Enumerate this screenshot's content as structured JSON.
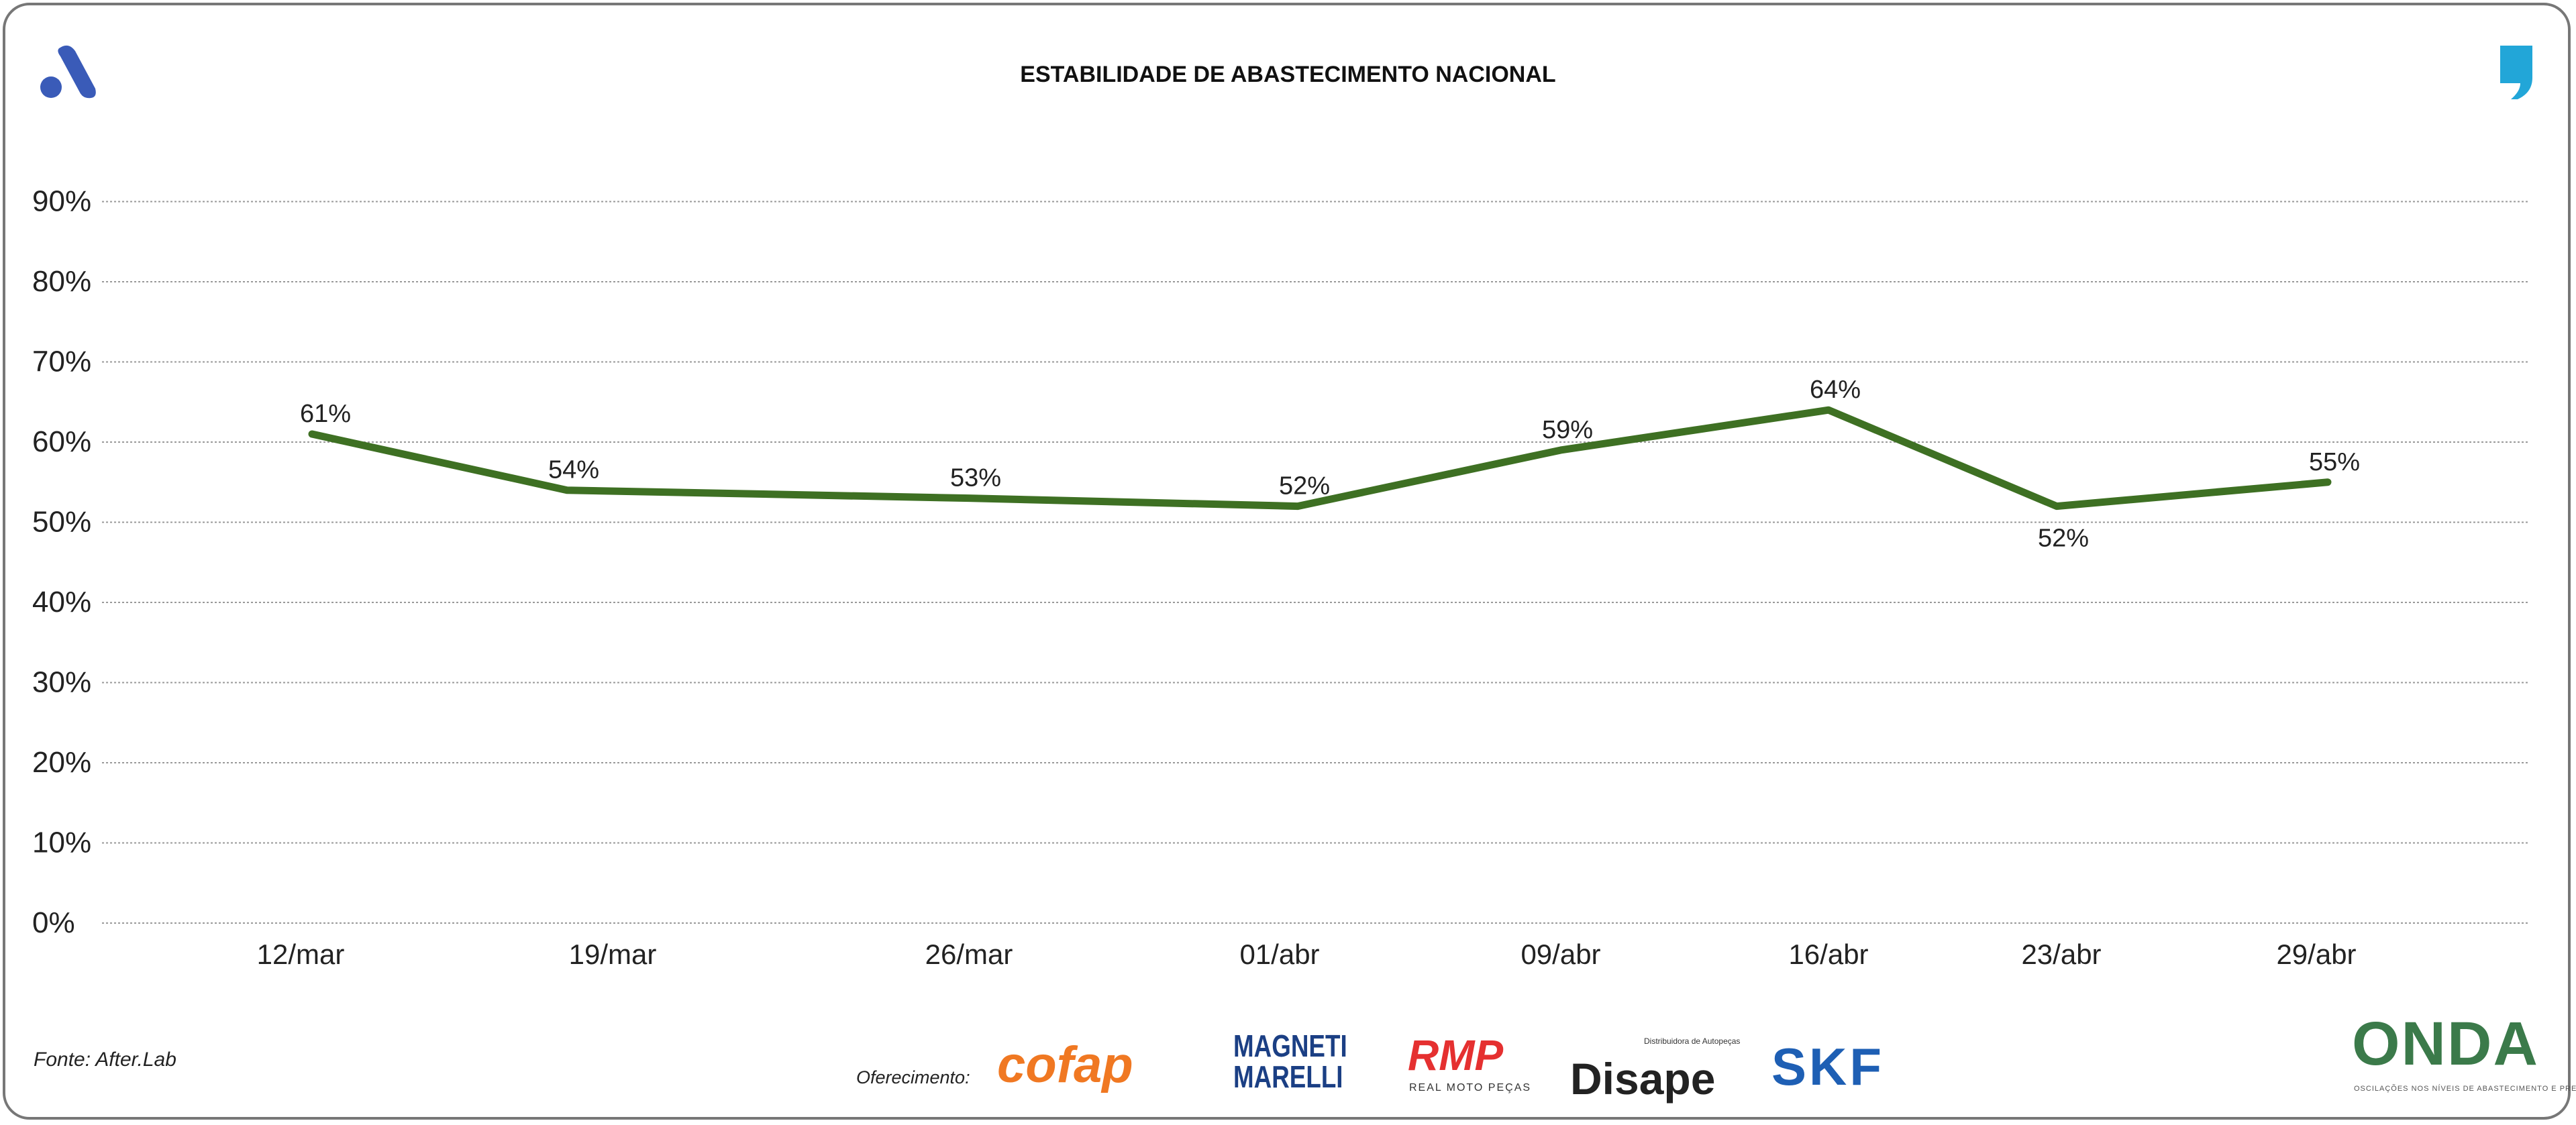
{
  "chart_data": {
    "type": "line",
    "title": "ESTABILIDADE DE ABASTECIMENTO NACIONAL",
    "categories": [
      "12/mar",
      "19/mar",
      "26/mar",
      "01/abr",
      "09/abr",
      "16/abr",
      "23/abr",
      "29/abr"
    ],
    "series": [
      {
        "name": "Estabilidade",
        "values": [
          61,
          54,
          53,
          52,
          59,
          64,
          52,
          55
        ],
        "labels": [
          "61%",
          "54%",
          "53%",
          "52%",
          "59%",
          "64%",
          "52%",
          "55%"
        ],
        "color": "#3e7023"
      }
    ],
    "yticks": [
      "0%",
      "10%",
      "20%",
      "30%",
      "40%",
      "50%",
      "60%",
      "70%",
      "80%",
      "90%"
    ],
    "ylim": [
      0,
      90
    ],
    "xlabel": "",
    "ylabel": "",
    "grid": true,
    "legend": "none"
  },
  "footer": {
    "source": "Fonte: After.Lab",
    "sponsor_label": "Oferecimento:",
    "sponsors": [
      "cofap",
      "MAGNETI MARELLI",
      "RMP",
      "Disape",
      "SKF"
    ],
    "rmp_sub": "REAL MOTO PEÇAS",
    "disape_sub": "Distribuidora de Autopeças",
    "brand": "ONDA",
    "brand_sub": "OSCILAÇÕES NOS NÍVEIS DE ABASTECIMENTO E PREÇO"
  },
  "colors": {
    "line": "#3e7023",
    "logo_a": "#3a5bb8",
    "logo_q": "#22a6d8"
  }
}
